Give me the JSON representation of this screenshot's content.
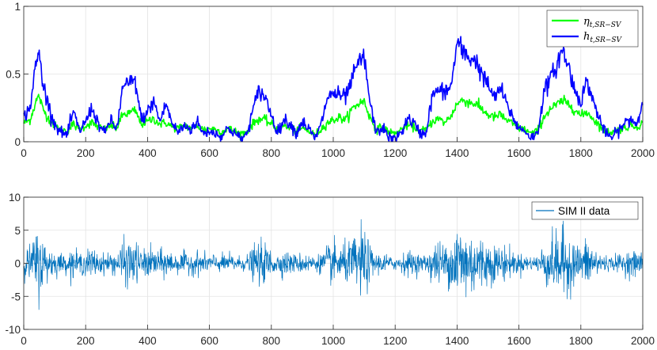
{
  "chart_data": [
    {
      "type": "line",
      "title": "",
      "xlabel": "",
      "ylabel": "",
      "xlim": [
        0,
        2000
      ],
      "ylim": [
        0,
        1
      ],
      "xticks": [
        "0",
        "200",
        "400",
        "600",
        "800",
        "1000",
        "1200",
        "1400",
        "1600",
        "1800",
        "2000"
      ],
      "yticks": [
        "0",
        "0.5",
        "1"
      ],
      "grid": true,
      "legend": "top-right",
      "series": [
        {
          "name": "η",
          "subscript": "t,SR−SV",
          "color": "#00ff00",
          "x": [
            0,
            20,
            40,
            50,
            60,
            80,
            100,
            120,
            140,
            160,
            180,
            200,
            220,
            240,
            260,
            280,
            300,
            320,
            340,
            360,
            380,
            400,
            420,
            440,
            460,
            480,
            500,
            520,
            540,
            560,
            580,
            600,
            620,
            640,
            660,
            680,
            700,
            720,
            740,
            760,
            780,
            800,
            820,
            840,
            860,
            880,
            900,
            920,
            940,
            960,
            980,
            1000,
            1020,
            1040,
            1060,
            1080,
            1100,
            1120,
            1140,
            1160,
            1180,
            1200,
            1220,
            1240,
            1260,
            1280,
            1300,
            1320,
            1340,
            1360,
            1380,
            1400,
            1420,
            1440,
            1460,
            1480,
            1500,
            1520,
            1540,
            1560,
            1580,
            1600,
            1620,
            1640,
            1660,
            1680,
            1700,
            1720,
            1740,
            1760,
            1780,
            1800,
            1820,
            1840,
            1860,
            1880,
            1900,
            1920,
            1940,
            1960,
            1980,
            2000
          ],
          "values": [
            0.14,
            0.16,
            0.3,
            0.34,
            0.25,
            0.17,
            0.12,
            0.09,
            0.08,
            0.13,
            0.09,
            0.12,
            0.14,
            0.11,
            0.09,
            0.12,
            0.1,
            0.2,
            0.21,
            0.23,
            0.13,
            0.15,
            0.17,
            0.13,
            0.14,
            0.11,
            0.1,
            0.12,
            0.1,
            0.12,
            0.09,
            0.1,
            0.09,
            0.07,
            0.1,
            0.08,
            0.06,
            0.07,
            0.13,
            0.17,
            0.16,
            0.13,
            0.09,
            0.12,
            0.1,
            0.08,
            0.1,
            0.08,
            0.05,
            0.09,
            0.14,
            0.16,
            0.18,
            0.16,
            0.24,
            0.28,
            0.3,
            0.17,
            0.09,
            0.11,
            0.07,
            0.06,
            0.09,
            0.12,
            0.11,
            0.08,
            0.09,
            0.15,
            0.17,
            0.14,
            0.19,
            0.28,
            0.31,
            0.29,
            0.28,
            0.24,
            0.2,
            0.18,
            0.2,
            0.16,
            0.13,
            0.1,
            0.09,
            0.06,
            0.08,
            0.18,
            0.24,
            0.27,
            0.3,
            0.28,
            0.24,
            0.19,
            0.22,
            0.17,
            0.12,
            0.08,
            0.07,
            0.09,
            0.1,
            0.12,
            0.11,
            0.14
          ]
        },
        {
          "name": "h",
          "subscript": "t,SR−SV",
          "color": "#0000ff",
          "x": [
            0,
            20,
            40,
            50,
            60,
            80,
            100,
            120,
            140,
            160,
            180,
            200,
            220,
            240,
            260,
            280,
            300,
            320,
            340,
            360,
            380,
            400,
            420,
            440,
            460,
            480,
            500,
            520,
            540,
            560,
            580,
            600,
            620,
            640,
            660,
            680,
            700,
            720,
            740,
            760,
            780,
            800,
            820,
            840,
            860,
            880,
            900,
            920,
            940,
            960,
            980,
            1000,
            1020,
            1040,
            1060,
            1080,
            1100,
            1120,
            1140,
            1160,
            1180,
            1200,
            1220,
            1240,
            1260,
            1280,
            1300,
            1320,
            1340,
            1360,
            1380,
            1400,
            1420,
            1440,
            1460,
            1480,
            1500,
            1520,
            1540,
            1560,
            1580,
            1600,
            1620,
            1640,
            1660,
            1680,
            1700,
            1720,
            1740,
            1760,
            1780,
            1800,
            1820,
            1840,
            1860,
            1880,
            1900,
            1920,
            1940,
            1960,
            1980,
            2000
          ],
          "values": [
            0.18,
            0.25,
            0.58,
            0.66,
            0.45,
            0.27,
            0.13,
            0.07,
            0.05,
            0.22,
            0.08,
            0.15,
            0.25,
            0.14,
            0.06,
            0.16,
            0.09,
            0.4,
            0.43,
            0.45,
            0.16,
            0.22,
            0.3,
            0.15,
            0.28,
            0.13,
            0.07,
            0.12,
            0.09,
            0.15,
            0.06,
            0.08,
            0.06,
            0.04,
            0.1,
            0.07,
            0.02,
            0.05,
            0.23,
            0.38,
            0.33,
            0.2,
            0.07,
            0.16,
            0.14,
            0.06,
            0.15,
            0.1,
            0.02,
            0.12,
            0.32,
            0.36,
            0.34,
            0.33,
            0.45,
            0.58,
            0.62,
            0.27,
            0.06,
            0.11,
            0.03,
            0.02,
            0.07,
            0.17,
            0.14,
            0.06,
            0.07,
            0.34,
            0.38,
            0.37,
            0.4,
            0.73,
            0.66,
            0.62,
            0.6,
            0.5,
            0.42,
            0.32,
            0.4,
            0.28,
            0.18,
            0.1,
            0.08,
            0.03,
            0.06,
            0.36,
            0.46,
            0.55,
            0.68,
            0.56,
            0.38,
            0.3,
            0.45,
            0.3,
            0.17,
            0.06,
            0.03,
            0.08,
            0.13,
            0.17,
            0.13,
            0.28
          ]
        }
      ]
    },
    {
      "type": "line",
      "title": "",
      "xlabel": "",
      "ylabel": "",
      "xlim": [
        0,
        2000
      ],
      "ylim": [
        -10,
        10
      ],
      "xticks": [
        "0",
        "200",
        "400",
        "600",
        "800",
        "1000",
        "1200",
        "1400",
        "1600",
        "1800",
        "2000"
      ],
      "yticks": [
        "-10",
        "-5",
        "0",
        "5",
        "10"
      ],
      "grid": true,
      "legend": "top-right",
      "series": [
        {
          "name": "SIM II data",
          "color": "#0072bd",
          "n_points": 2000,
          "envelope_x": [
            0,
            20,
            40,
            50,
            60,
            80,
            100,
            120,
            140,
            160,
            180,
            200,
            220,
            240,
            260,
            280,
            300,
            320,
            340,
            360,
            380,
            400,
            420,
            440,
            460,
            480,
            500,
            520,
            540,
            560,
            580,
            600,
            620,
            640,
            660,
            680,
            700,
            720,
            740,
            760,
            780,
            800,
            820,
            840,
            860,
            880,
            900,
            920,
            940,
            960,
            980,
            1000,
            1020,
            1040,
            1060,
            1080,
            1100,
            1120,
            1140,
            1160,
            1180,
            1200,
            1220,
            1240,
            1260,
            1280,
            1300,
            1320,
            1340,
            1360,
            1380,
            1400,
            1420,
            1440,
            1460,
            1480,
            1500,
            1520,
            1540,
            1560,
            1580,
            1600,
            1620,
            1640,
            1660,
            1680,
            1700,
            1720,
            1740,
            1760,
            1780,
            1800,
            1820,
            1840,
            1860,
            1880,
            1900,
            1920,
            1940,
            1960,
            1980,
            2000
          ],
          "envelope_amplitude": [
            2.2,
            3.2,
            5.5,
            6.5,
            4.5,
            3.0,
            2.2,
            1.8,
            1.6,
            2.6,
            1.8,
            2.2,
            2.8,
            2.0,
            1.6,
            2.2,
            1.8,
            3.8,
            4.0,
            4.2,
            2.3,
            2.6,
            3.0,
            2.2,
            2.8,
            2.0,
            1.7,
            2.0,
            1.8,
            2.2,
            1.6,
            1.8,
            1.6,
            1.4,
            1.8,
            1.6,
            1.2,
            1.5,
            2.8,
            3.8,
            3.4,
            2.6,
            1.6,
            2.2,
            2.0,
            1.5,
            2.0,
            1.7,
            1.2,
            1.8,
            3.2,
            3.6,
            3.4,
            3.3,
            4.2,
            5.8,
            6.3,
            3.0,
            1.6,
            2.0,
            1.3,
            1.2,
            1.6,
            2.2,
            2.0,
            1.5,
            1.6,
            3.4,
            3.8,
            3.7,
            4.0,
            8.2,
            6.8,
            6.0,
            5.6,
            4.6,
            4.0,
            3.2,
            3.8,
            2.8,
            2.2,
            1.7,
            1.5,
            1.2,
            1.5,
            3.5,
            4.6,
            5.3,
            6.3,
            5.4,
            3.8,
            3.0,
            4.5,
            3.0,
            2.2,
            1.4,
            1.2,
            1.6,
            2.0,
            2.2,
            2.0,
            2.5
          ]
        }
      ]
    }
  ],
  "legend_top": {
    "eta_label": "η",
    "eta_sub": "t,SR−SV",
    "h_label": "h",
    "h_sub": "t,SR−SV"
  },
  "legend_bottom": {
    "label": "SIM II data"
  }
}
